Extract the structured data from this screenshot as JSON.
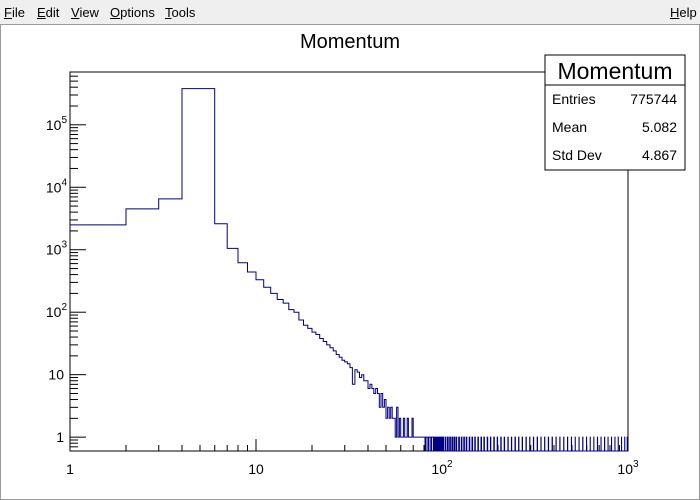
{
  "menu": {
    "file": {
      "accel": "F",
      "rest": "ile"
    },
    "edit": {
      "accel": "E",
      "rest": "dit"
    },
    "view": {
      "accel": "V",
      "rest": "iew"
    },
    "options": {
      "accel": "O",
      "rest": "ptions"
    },
    "tools": {
      "accel": "T",
      "rest": "ools"
    },
    "help": {
      "accel": "H",
      "rest": "elp"
    }
  },
  "stats": {
    "title": "Momentum",
    "rows": [
      {
        "label": "Entries",
        "value": "775744"
      },
      {
        "label": "Mean",
        "value": "5.082"
      },
      {
        "label": "Std Dev",
        "value": "4.867"
      }
    ]
  },
  "colors": {
    "histogram_line": "#000080",
    "axis": "#000000"
  },
  "chart_data": {
    "type": "histogram",
    "title": "Momentum",
    "xlabel": "",
    "ylabel": "",
    "x_scale": "log",
    "y_scale": "log",
    "xlim": [
      1,
      1000
    ],
    "ylim": [
      0.6,
      700000
    ],
    "x_tick_labels": [
      "1",
      "10",
      "10^2",
      "10^3"
    ],
    "y_tick_labels": [
      "1",
      "10",
      "10^2",
      "10^3",
      "10^4",
      "10^5"
    ],
    "bin_width": 1,
    "grid": false,
    "legend": "none",
    "bins": [
      [
        1,
        2500
      ],
      [
        2,
        4500
      ],
      [
        3,
        6500
      ],
      [
        4,
        380000
      ],
      [
        5,
        380000
      ],
      [
        6,
        2600
      ],
      [
        7,
        1050
      ],
      [
        8,
        620
      ],
      [
        9,
        440
      ],
      [
        10,
        330
      ],
      [
        11,
        250
      ],
      [
        12,
        200
      ],
      [
        13,
        160
      ],
      [
        14,
        140
      ],
      [
        15,
        110
      ],
      [
        16,
        100
      ],
      [
        17,
        75
      ],
      [
        18,
        62
      ],
      [
        19,
        55
      ],
      [
        20,
        48
      ],
      [
        21,
        44
      ],
      [
        22,
        38
      ],
      [
        23,
        34
      ],
      [
        24,
        30
      ],
      [
        25,
        27
      ],
      [
        26,
        24
      ],
      [
        27,
        21
      ],
      [
        28,
        19
      ],
      [
        29,
        17
      ],
      [
        30,
        16
      ],
      [
        31,
        15
      ],
      [
        32,
        13
      ],
      [
        33,
        7
      ],
      [
        34,
        12
      ],
      [
        35,
        11
      ],
      [
        36,
        9
      ],
      [
        37,
        10
      ],
      [
        38,
        8
      ],
      [
        39,
        8
      ],
      [
        40,
        6
      ],
      [
        41,
        7
      ],
      [
        42,
        6
      ],
      [
        43,
        5
      ],
      [
        44,
        6
      ],
      [
        45,
        5
      ],
      [
        46,
        3
      ],
      [
        47,
        5
      ],
      [
        48,
        3
      ],
      [
        49,
        4
      ],
      [
        50,
        2
      ],
      [
        51,
        3
      ],
      [
        52,
        2
      ],
      [
        53,
        3
      ],
      [
        54,
        2
      ],
      [
        55,
        2
      ],
      [
        56,
        1
      ],
      [
        57,
        3
      ],
      [
        58,
        1
      ],
      [
        59,
        2
      ],
      [
        60,
        1
      ],
      [
        61,
        1
      ],
      [
        62,
        2
      ],
      [
        63,
        1
      ],
      [
        64,
        1
      ],
      [
        65,
        2
      ],
      [
        66,
        1
      ],
      [
        67,
        1
      ],
      [
        68,
        1
      ],
      [
        69,
        2
      ],
      [
        70,
        1
      ],
      [
        71,
        1
      ],
      [
        72,
        1
      ],
      [
        73,
        1
      ],
      [
        74,
        1
      ],
      [
        75,
        1
      ],
      [
        76,
        1
      ],
      [
        77,
        1
      ],
      [
        78,
        1
      ],
      [
        79,
        1
      ],
      [
        80,
        1
      ],
      [
        82,
        1
      ],
      [
        83,
        1
      ],
      [
        85,
        1
      ],
      [
        86,
        1
      ],
      [
        88,
        1
      ],
      [
        89,
        1
      ],
      [
        91,
        1
      ],
      [
        93,
        1
      ],
      [
        95,
        1
      ],
      [
        97,
        1
      ],
      [
        99,
        1
      ],
      [
        101,
        1
      ],
      [
        104,
        1
      ],
      [
        107,
        1
      ],
      [
        110,
        1
      ],
      [
        113,
        1
      ],
      [
        116,
        1
      ],
      [
        119,
        1
      ],
      [
        123,
        1
      ],
      [
        127,
        1
      ],
      [
        131,
        1
      ],
      [
        135,
        1
      ],
      [
        140,
        1
      ],
      [
        145,
        1
      ],
      [
        150,
        1
      ],
      [
        156,
        1
      ],
      [
        162,
        1
      ],
      [
        168,
        1
      ],
      [
        175,
        1
      ],
      [
        182,
        1
      ],
      [
        190,
        1
      ],
      [
        198,
        1
      ],
      [
        207,
        1
      ],
      [
        216,
        1
      ],
      [
        226,
        1
      ],
      [
        236,
        1
      ],
      [
        247,
        1
      ],
      [
        258,
        1
      ],
      [
        270,
        1
      ],
      [
        283,
        1
      ],
      [
        296,
        1
      ],
      [
        310,
        1
      ],
      [
        325,
        1
      ],
      [
        340,
        1
      ],
      [
        356,
        1
      ],
      [
        373,
        1
      ],
      [
        391,
        1
      ],
      [
        410,
        1
      ],
      [
        430,
        1
      ],
      [
        451,
        1
      ],
      [
        473,
        1
      ],
      [
        496,
        1
      ],
      [
        520,
        1
      ],
      [
        545,
        1
      ],
      [
        571,
        1
      ],
      [
        598,
        1
      ],
      [
        626,
        1
      ],
      [
        655,
        1
      ],
      [
        685,
        1
      ],
      [
        716,
        1
      ],
      [
        748,
        1
      ],
      [
        781,
        1
      ],
      [
        815,
        1
      ],
      [
        850,
        1
      ],
      [
        886,
        1
      ],
      [
        923,
        1
      ],
      [
        960,
        1
      ],
      [
        990,
        1
      ]
    ]
  }
}
